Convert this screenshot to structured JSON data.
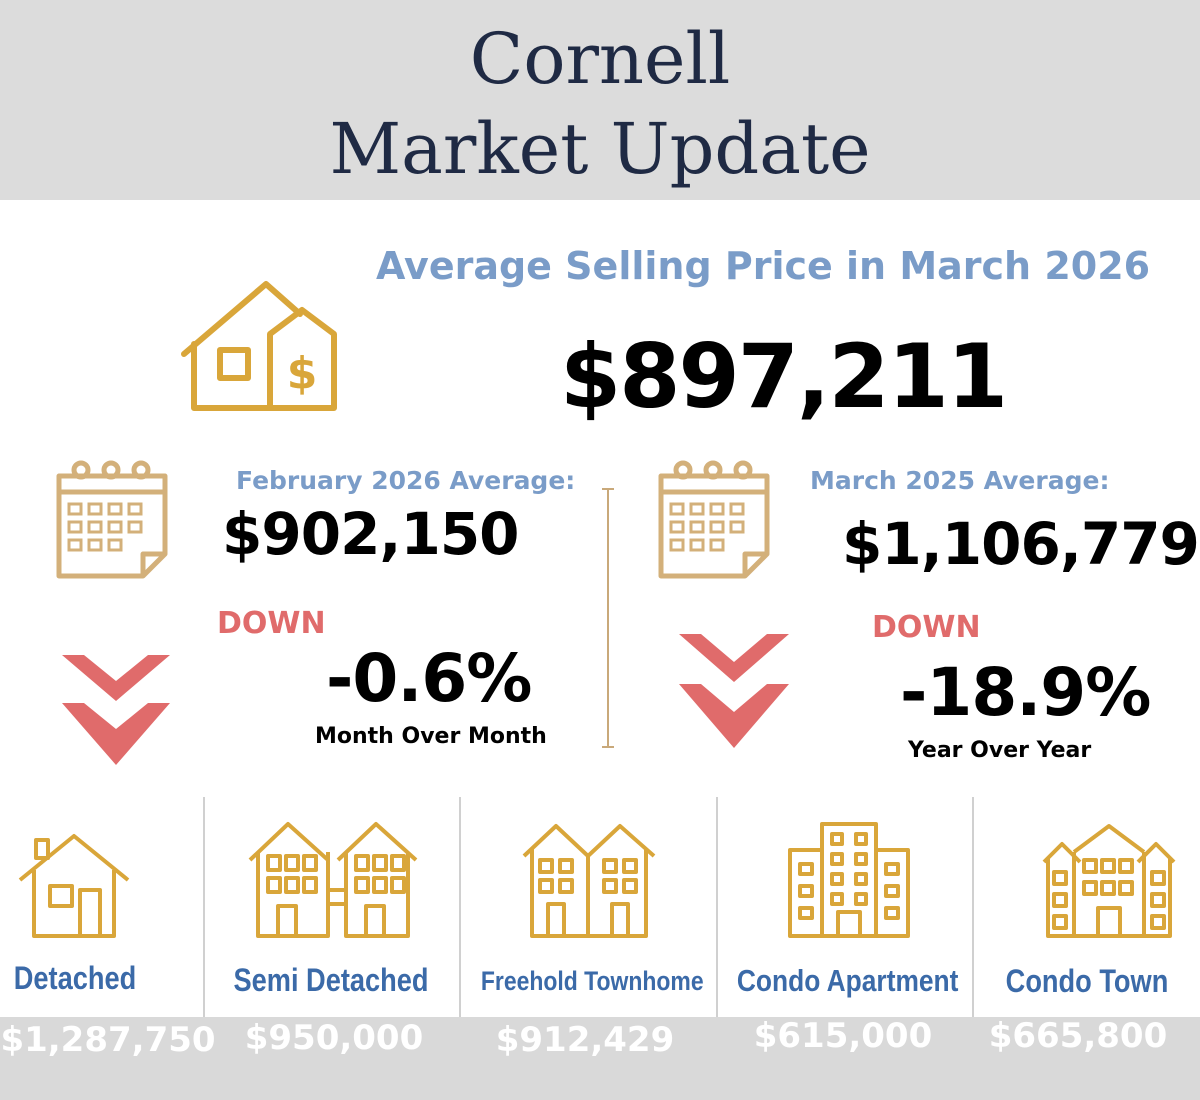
{
  "header": {
    "line1": "Cornell",
    "line2": "Market Update"
  },
  "subtitle": "Average Selling Price in March 2026",
  "average_price": "$897,211",
  "month_compare": {
    "label": "February 2026 Average:",
    "value": "$902,150",
    "direction": "DOWN",
    "change": "-0.6%",
    "period": "Month Over Month"
  },
  "year_compare": {
    "label": "March 2025 Average:",
    "value": "$1,106,779",
    "direction": "DOWN",
    "change": "-18.9%",
    "period": "Year Over Year"
  },
  "property_types": [
    {
      "name": "Detached",
      "price": "$1,287,750"
    },
    {
      "name": "Semi Detached",
      "price": "$950,000"
    },
    {
      "name": "Freehold Townhome",
      "price": "$912,429"
    },
    {
      "name": "Condo Apartment",
      "price": "$615,000"
    },
    {
      "name": "Condo Town",
      "price": "$665,800"
    }
  ],
  "colors": {
    "gold": "#d9a63a",
    "down_red": "#e06b6b",
    "blue": "#7a9cc8",
    "navy": "#1f2a44"
  },
  "icons": [
    "house-dollar-icon",
    "calendar-icon",
    "double-chevron-down-icon",
    "detached-house-icon",
    "semi-detached-icon",
    "townhome-icon",
    "condo-building-icon",
    "condo-town-icon"
  ]
}
